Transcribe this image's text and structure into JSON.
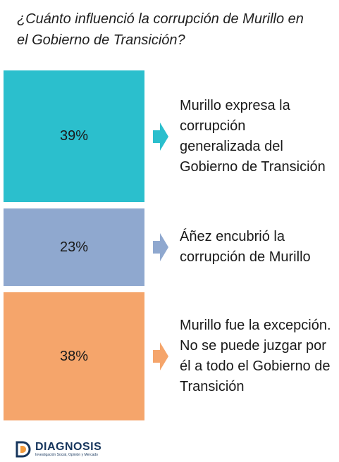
{
  "title_lines": [
    "¿Cuánto influenció la corrupción de Murillo en",
    "el Gobierno de Transición?"
  ],
  "chart_data": {
    "type": "bar",
    "title": "¿Cuánto influenció la corrupción de Murillo en el Gobierno de Transición?",
    "categories": [
      "Murillo expresa la corrupción generalizada del Gobierno de Transición",
      "Áñez encubrió la corrupción de Murillo",
      "Murillo fue la excepción. No se puede juzgar por él a todo el Gobierno de Transición"
    ],
    "values": [
      39,
      23,
      38
    ],
    "unit": "%",
    "value_labels": [
      "39%",
      "23%",
      "38%"
    ],
    "colors": [
      "#2bbfcd",
      "#8fa8cf",
      "#f5a56b"
    ],
    "legend": "none",
    "grid": false
  },
  "descriptions": [
    [
      "Murillo expresa la",
      "corrupción",
      "generalizada del",
      "Gobierno de Transición"
    ],
    [
      "Áñez encubrió la",
      "corrupción de Murillo"
    ],
    [
      "Murillo fue la excepción.",
      "No se puede juzgar por",
      "él a todo el Gobierno de",
      "Transición"
    ]
  ],
  "logo": {
    "name": "DIAGNOSIS",
    "tagline": "Investigación Social, Opinión y Mercado",
    "colors": [
      "#17365d",
      "#f39a3c"
    ]
  }
}
